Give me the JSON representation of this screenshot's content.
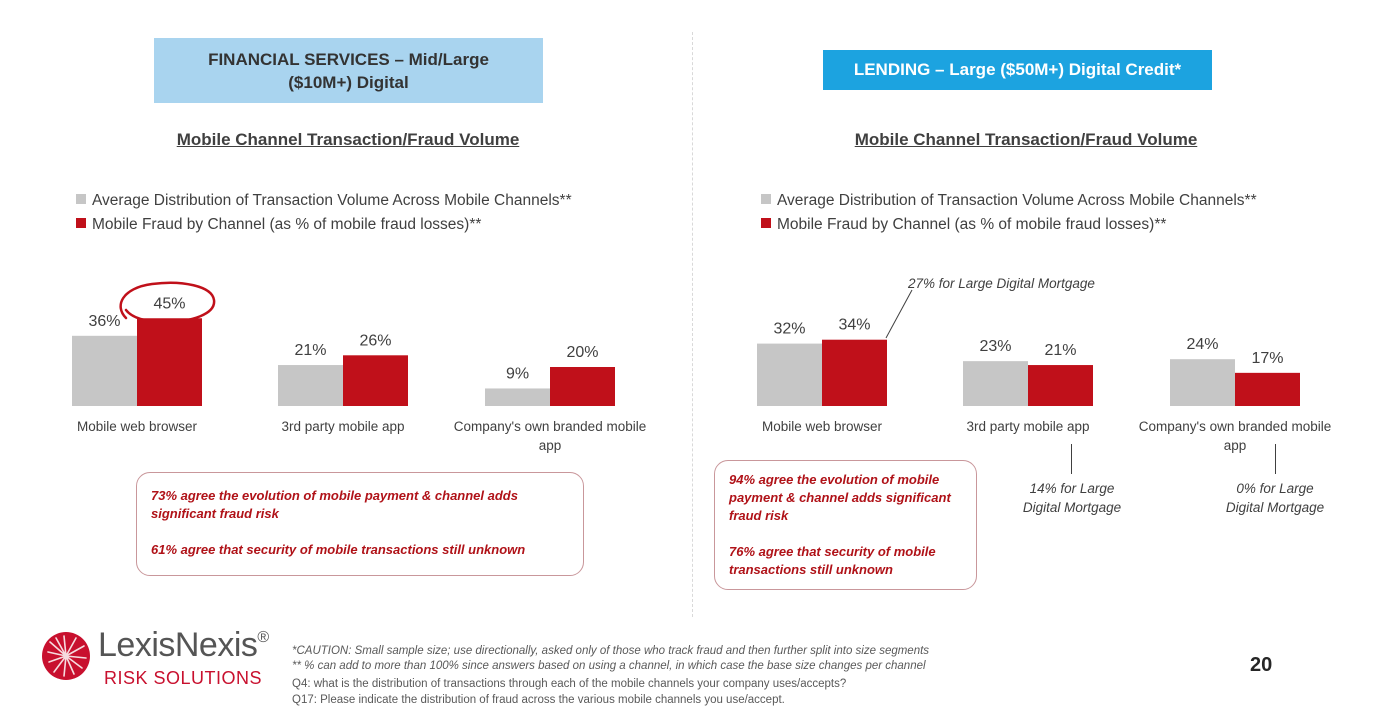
{
  "colors": {
    "gray": "#c6c6c6",
    "red": "#c0101a",
    "header_left_bg": "#a9d4ef",
    "header_right_bg": "#1ca3e0"
  },
  "left_panel": {
    "header": "FINANCIAL SERVICES – Mid/Large\n($10M+) Digital",
    "callout_1": "73% agree the evolution of mobile payment & channel adds significant fraud risk",
    "callout_2": "61% agree that security of mobile transactions still unknown"
  },
  "right_panel": {
    "header": "LENDING – Large ($50M+) Digital Credit*",
    "callout_1": "94% agree the evolution of mobile payment & channel adds significant fraud risk",
    "callout_2": "76% agree that security of mobile transactions still unknown",
    "note_mobile_web": "27% for Large Digital Mortgage",
    "note_3rd_party": "14% for Large Digital Mortgage",
    "note_own_app": "0% for Large Digital Mortgage"
  },
  "chart_data": [
    {
      "type": "bar",
      "title": "Mobile Channel Transaction/Fraud Volume",
      "categories": [
        "Mobile web browser",
        "3rd party mobile app",
        "Company's own branded mobile app"
      ],
      "series": [
        {
          "name": "Average Distribution of Transaction Volume Across Mobile Channels**",
          "values": [
            36,
            21,
            9
          ],
          "labels": [
            "36%",
            "21%",
            "9%"
          ]
        },
        {
          "name": "Mobile Fraud by Channel (as % of mobile fraud losses)**",
          "values": [
            45,
            26,
            20
          ],
          "labels": [
            "45%",
            "26%",
            "20%"
          ]
        }
      ],
      "legend": "top-left",
      "grid": false,
      "highlight": "45% circled"
    },
    {
      "type": "bar",
      "title": "Mobile Channel Transaction/Fraud Volume",
      "categories": [
        "Mobile web browser",
        "3rd party mobile app",
        "Company's own branded mobile app"
      ],
      "series": [
        {
          "name": "Average Distribution of Transaction Volume Across Mobile Channels**",
          "values": [
            32,
            23,
            24
          ],
          "labels": [
            "32%",
            "23%",
            "24%"
          ]
        },
        {
          "name": "Mobile Fraud by Channel (as % of mobile fraud losses)**",
          "values": [
            34,
            21,
            17
          ],
          "labels": [
            "34%",
            "21%",
            "17%"
          ]
        }
      ],
      "legend": "top-left",
      "grid": false
    }
  ],
  "footer": {
    "line_1": "*CAUTION:  Small sample size; use directionally, asked only of those who track fraud and then further split into size segments",
    "line_2": "** % can add to more than 100% since answers based on using a channel, in which case the base size changes per channel",
    "line_3": "Q4: what is the distribution of transactions through each of the mobile channels your company uses/accepts?",
    "line_4": "Q17: Please indicate the distribution of fraud across the various mobile channels you use/accept.",
    "page_number": "20",
    "logo_name": "LexisNexis",
    "logo_mark": "®",
    "logo_sub": "RISK SOLUTIONS"
  }
}
